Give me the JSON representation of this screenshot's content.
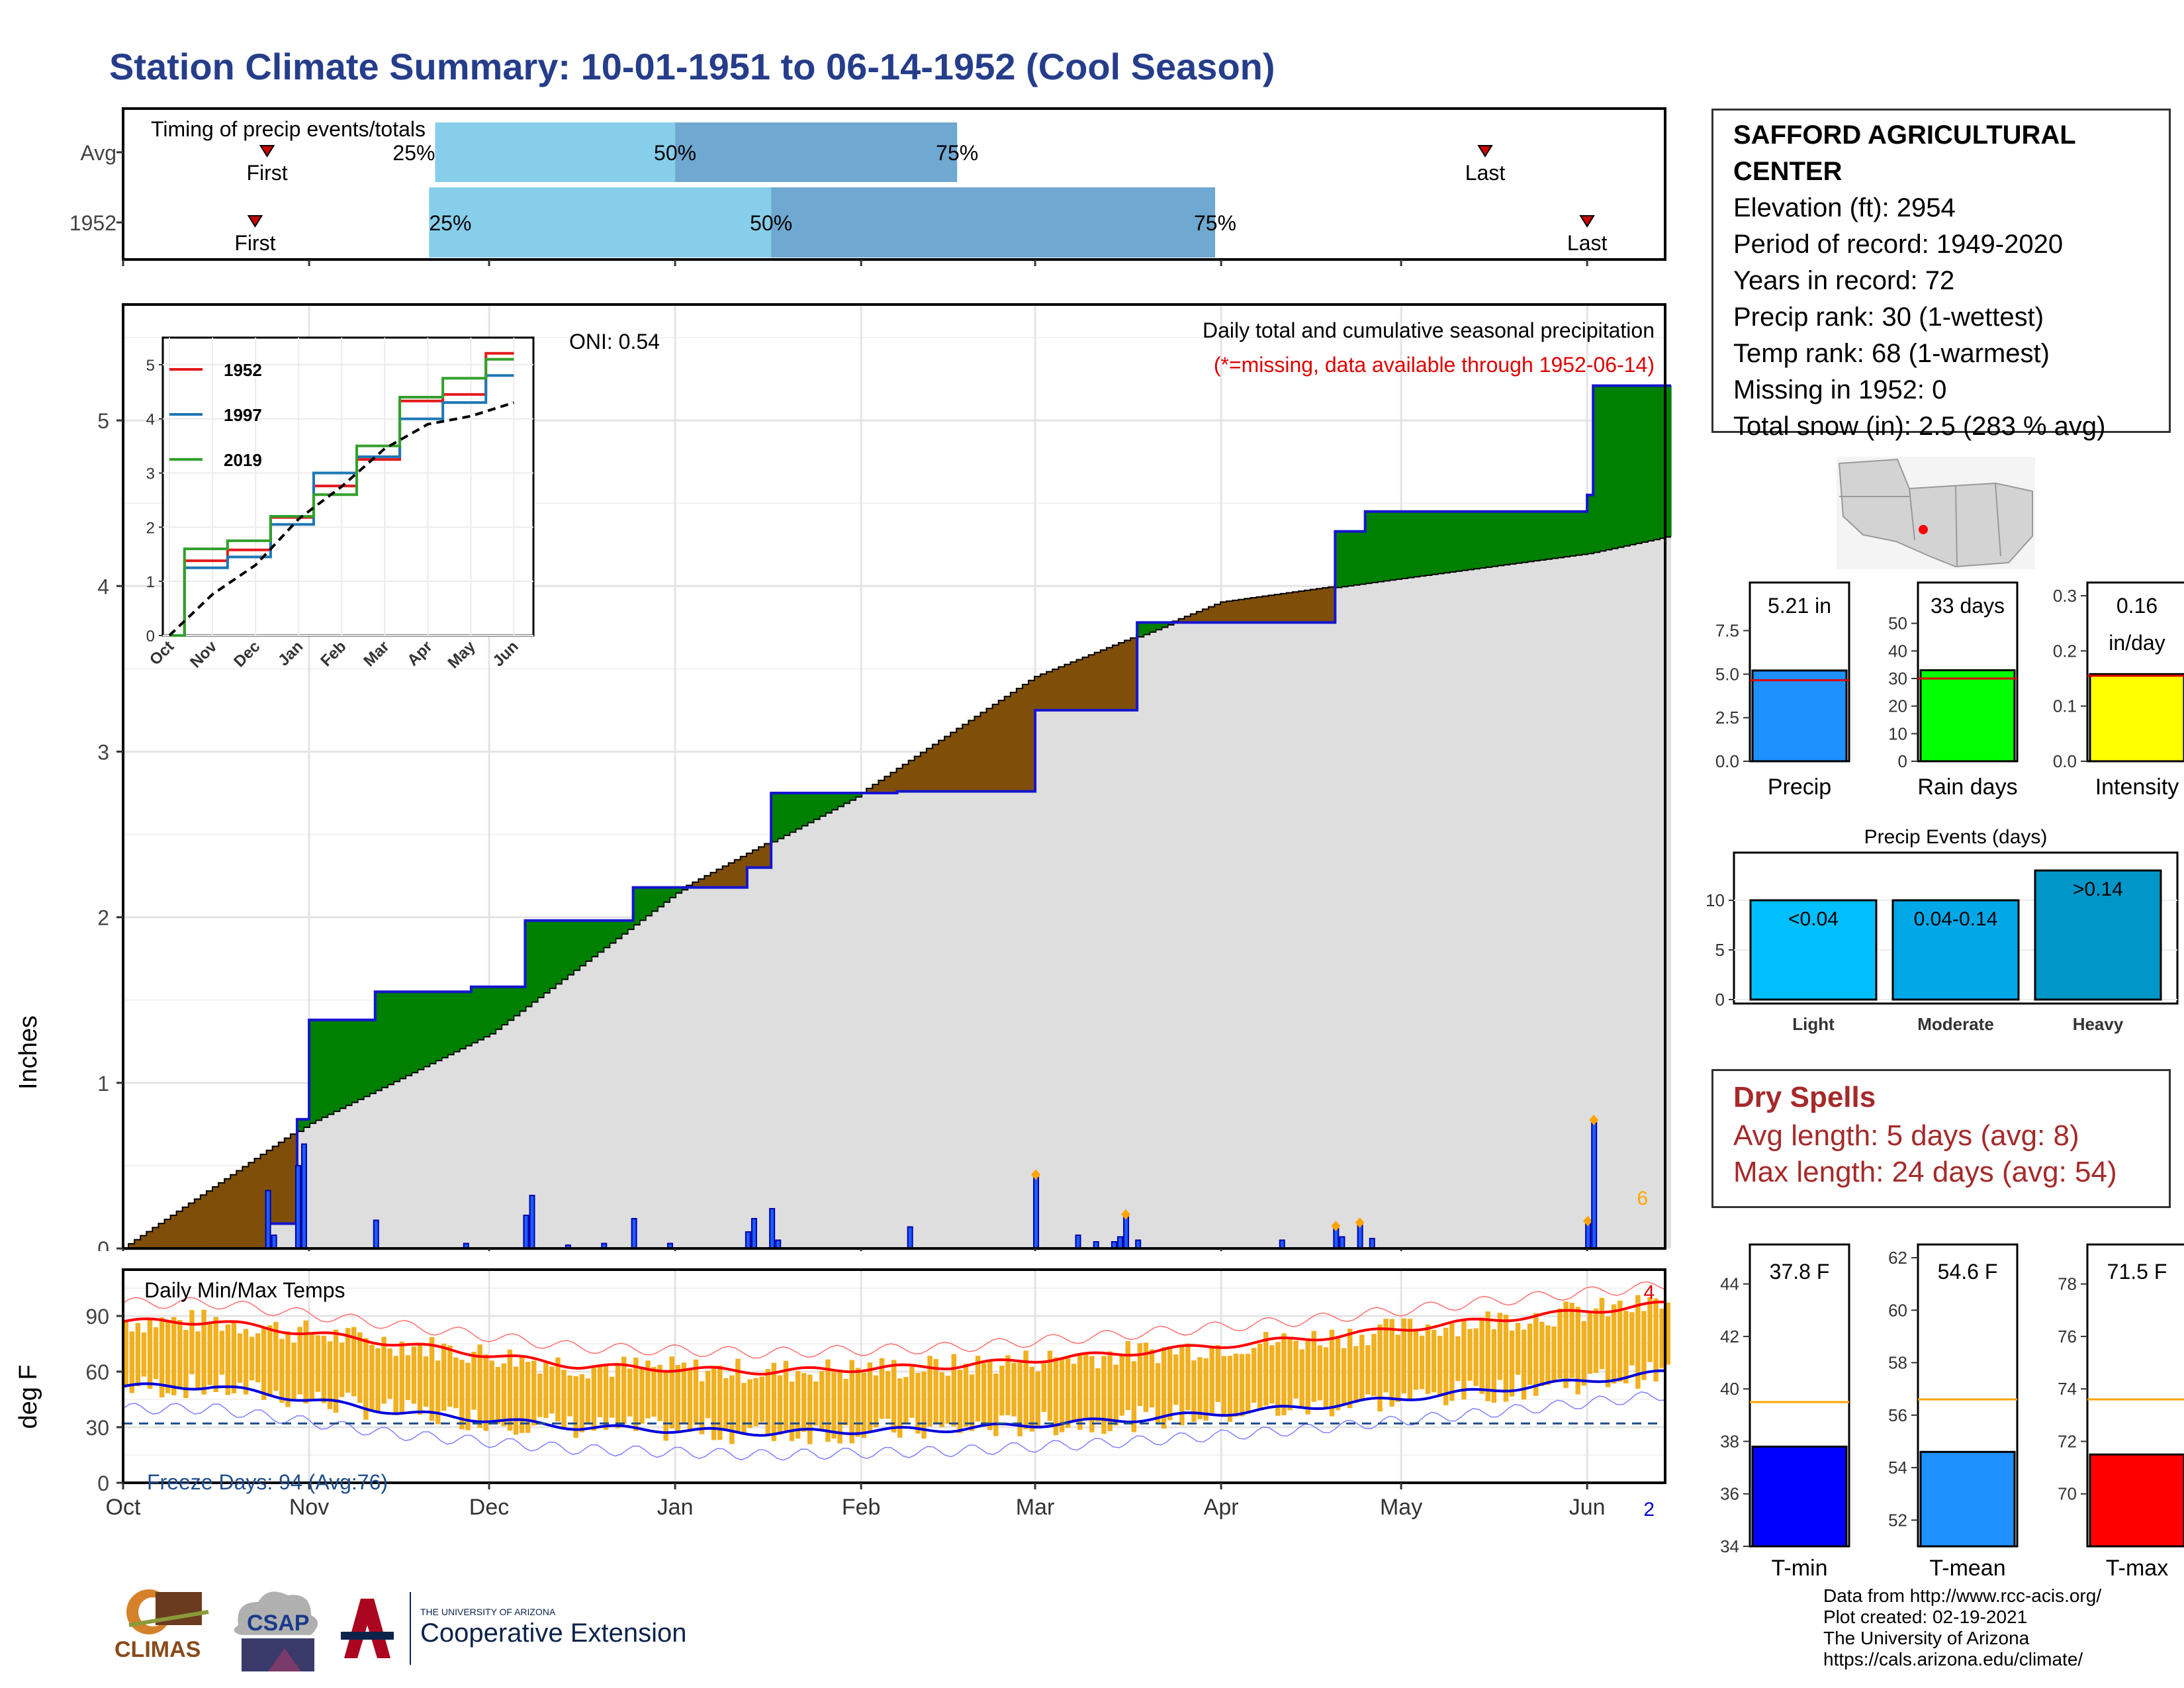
{
  "title": "Station Climate Summary: 10-01-1951 to 06-14-1952 (Cool Season)",
  "timing": {
    "title": "Timing of precip events/totals",
    "rows": [
      {
        "label": "Avg",
        "first": "Oct 25",
        "p25": "Nov 22",
        "p50": "Jan 1",
        "p75": "Feb 17",
        "last": "May 15"
      },
      {
        "label": "1952",
        "first": "Oct 23",
        "p25": "Nov 21",
        "p50": "Jan 17",
        "p75": "Mar 31",
        "last": "Jun 1"
      }
    ],
    "first_label": "First",
    "last_label": "Last",
    "p25_label": "25%",
    "p50_label": "50%",
    "p75_label": "75%"
  },
  "precip_panel": {
    "ylabel": "Inches",
    "oni": "ONI: 0.54",
    "title": "Daily total and cumulative seasonal precipitation",
    "missing_note": "(*=missing, data available through 1952-06-14)",
    "count_label": "6",
    "y_ticks": [
      "0",
      "1",
      "2",
      "3",
      "4",
      "5"
    ]
  },
  "inset": {
    "series_names": [
      "1952",
      "1997",
      "2019"
    ],
    "x_ticks": [
      "Oct",
      "Nov",
      "Dec",
      "Jan",
      "Feb",
      "Mar",
      "Apr",
      "May",
      "Jun"
    ],
    "y_ticks": [
      "0",
      "1",
      "2",
      "3",
      "4",
      "5"
    ]
  },
  "temp_panel": {
    "ylabel": "deg F",
    "title": "Daily Min/Max Temps",
    "freeze_label": "Freeze Days: 94 (Avg:76)",
    "max_count": "4",
    "min_count": "2",
    "y_ticks": [
      "0",
      "30",
      "60",
      "90"
    ],
    "x_ticks": [
      "Oct",
      "Nov",
      "Dec",
      "Jan",
      "Feb",
      "Mar",
      "Apr",
      "May",
      "Jun"
    ]
  },
  "station": {
    "name_line1": "SAFFORD AGRICULTURAL",
    "name_line2": "CENTER",
    "lines": [
      "Elevation (ft): 2954",
      "Period of record: 1949-2020",
      "Years in record: 72",
      "Precip rank: 30 (1-wettest)",
      "Temp rank: 68 (1-warmest)",
      "Missing in 1952: 0",
      "Total snow (in): 2.5 (283 % avg)"
    ]
  },
  "mini_bars": [
    {
      "label": "Precip",
      "value_label": "5.21 in",
      "value": 5.21,
      "avg": 4.65,
      "ymax": 9.5,
      "ticks": [
        0,
        2.5,
        5,
        7.5
      ],
      "tick_labels": [
        "0.0",
        "2.5",
        "5.0",
        "7.5"
      ],
      "color": "#1e90ff"
    },
    {
      "label": "Rain days",
      "value_label": "33 days",
      "value": 33,
      "avg": 30,
      "ymax": 60,
      "ticks": [
        0,
        10,
        20,
        30,
        40,
        50
      ],
      "tick_labels": [
        "0",
        "10",
        "20",
        "30",
        "40",
        "50"
      ],
      "color": "#00ff00"
    },
    {
      "label": "Intensity",
      "value_label": "0.16",
      "value_label2": "in/day",
      "value": 0.158,
      "avg": 0.155,
      "ymax": 0.3,
      "ticks": [
        0,
        0.1,
        0.2,
        0.3
      ],
      "tick_labels": [
        "0.0",
        "0.1",
        "0.2",
        "0.3"
      ],
      "color": "#ffff00"
    }
  ],
  "events": {
    "title": "Precip Events (days)",
    "categories": [
      "Light",
      "Moderate",
      "Heavy"
    ],
    "labels": [
      "<0.04",
      "0.04-0.14",
      ">0.14"
    ],
    "values": [
      10,
      10,
      13
    ],
    "colors": [
      "#00bfff",
      "#00a8e8",
      "#0096c7"
    ],
    "ticks": [
      "0",
      "5",
      "10"
    ]
  },
  "dry_spells": {
    "title": "Dry Spells",
    "avg": "Avg length: 5 days (avg: 8)",
    "max": "Max length: 24 days (avg: 54)"
  },
  "temp_bars": [
    {
      "label": "T-min",
      "value_label": "37.8 F",
      "value": 37.8,
      "avg": 39.5,
      "ymin": 34,
      "ymax": 45,
      "ticks": [
        34,
        36,
        38,
        40,
        42,
        44
      ],
      "color": "#0000ff"
    },
    {
      "label": "T-mean",
      "value_label": "54.6 F",
      "value": 54.6,
      "avg": 56.6,
      "ymin": 51,
      "ymax": 62,
      "ticks": [
        52,
        54,
        56,
        58,
        60,
        62
      ],
      "color": "#1e90ff"
    },
    {
      "label": "T-max",
      "value_label": "71.5 F",
      "value": 71.5,
      "avg": 73.6,
      "ymin": 68,
      "ymax": 79,
      "ticks": [
        70,
        72,
        74,
        76,
        78
      ],
      "color": "#ff0000"
    }
  ],
  "credits": [
    "Data from http://www.rcc-acis.org/",
    "Plot created: 02-19-2021",
    "The University of Arizona",
    "https://cals.arizona.edu/climate/"
  ],
  "logos": {
    "climas": "CLIMAS",
    "csap": "CSAP",
    "ua_small": "THE UNIVERSITY OF ARIZONA",
    "ua_big": "Cooperative Extension"
  },
  "chart_data": [
    {
      "type": "bar",
      "title": "Timing of precip events/totals",
      "categories": [
        "Avg",
        "1952"
      ],
      "series": [
        {
          "name": "25%",
          "values": [
            "Nov 22",
            "Nov 21"
          ]
        },
        {
          "name": "50%",
          "values": [
            "Jan 1",
            "Jan 17"
          ]
        },
        {
          "name": "75%",
          "values": [
            "Feb 17",
            "Mar 31"
          ]
        }
      ]
    },
    {
      "type": "area",
      "title": "Daily total and cumulative seasonal precipitation",
      "ylabel": "Inches",
      "ylim": [
        0,
        5.7
      ],
      "x_range": [
        "1951-10-01",
        "1952-06-14"
      ],
      "cumulative_1952": [
        [
          "1951-10-01",
          0
        ],
        [
          "1951-10-25",
          0.15
        ],
        [
          "1951-10-30",
          0.78
        ],
        [
          "1951-11-01",
          1.38
        ],
        [
          "1951-11-12",
          1.55
        ],
        [
          "1951-11-28",
          1.58
        ],
        [
          "1951-12-07",
          1.98
        ],
        [
          "1951-12-25",
          2.18
        ],
        [
          "1952-01-13",
          2.3
        ],
        [
          "1952-01-17",
          2.75
        ],
        [
          "1952-02-07",
          2.76
        ],
        [
          "1952-03-01",
          3.25
        ],
        [
          "1952-03-18",
          3.78
        ],
        [
          "1952-04-20",
          4.33
        ],
        [
          "1952-04-25",
          4.45
        ],
        [
          "1952-06-01",
          4.55
        ],
        [
          "1952-06-02",
          5.21
        ],
        [
          "1952-06-14",
          5.21
        ]
      ],
      "average_cumulative": [
        [
          "1951-10-01",
          0
        ],
        [
          "1951-11-01",
          0.76
        ],
        [
          "1951-12-01",
          1.3
        ],
        [
          "1952-01-01",
          2.15
        ],
        [
          "1952-02-01",
          2.75
        ],
        [
          "1952-03-01",
          3.45
        ],
        [
          "1952-04-01",
          3.9
        ],
        [
          "1952-05-01",
          4.05
        ],
        [
          "1952-06-01",
          4.2
        ],
        [
          "1952-06-14",
          4.3
        ]
      ],
      "daily_bars": [
        [
          "1951-10-25",
          0.35
        ],
        [
          "1951-10-26",
          0.08
        ],
        [
          "1951-10-30",
          0.5
        ],
        [
          "1951-10-31",
          0.63
        ],
        [
          "1951-11-12",
          0.17
        ],
        [
          "1951-11-27",
          0.03
        ],
        [
          "1951-12-07",
          0.2
        ],
        [
          "1951-12-08",
          0.32
        ],
        [
          "1951-12-14",
          0.02
        ],
        [
          "1951-12-20",
          0.03
        ],
        [
          "1951-12-25",
          0.18
        ],
        [
          "1951-12-31",
          0.03
        ],
        [
          "1952-01-13",
          0.1
        ],
        [
          "1952-01-14",
          0.18
        ],
        [
          "1952-01-17",
          0.24
        ],
        [
          "1952-01-18",
          0.05
        ],
        [
          "1952-02-09",
          0.13
        ],
        [
          "1952-03-01",
          0.43
        ],
        [
          "1952-03-08",
          0.08
        ],
        [
          "1952-03-11",
          0.04
        ],
        [
          "1952-03-14",
          0.04
        ],
        [
          "1952-03-15",
          0.07
        ],
        [
          "1952-03-16",
          0.19
        ],
        [
          "1952-03-18",
          0.05
        ],
        [
          "1952-04-11",
          0.05
        ],
        [
          "1952-04-20",
          0.12
        ],
        [
          "1952-04-21",
          0.07
        ],
        [
          "1952-04-24",
          0.14
        ],
        [
          "1952-04-26",
          0.06
        ],
        [
          "1952-06-01",
          0.15
        ],
        [
          "1952-06-02",
          0.76
        ]
      ]
    },
    {
      "type": "line",
      "title": "",
      "x": [
        "Oct",
        "Nov",
        "Dec",
        "Jan",
        "Feb",
        "Mar",
        "Apr",
        "May",
        "Jun"
      ],
      "ylim": [
        0,
        5.5
      ],
      "series": [
        {
          "name": "1952",
          "values": [
            0,
            1.38,
            1.58,
            2.18,
            2.76,
            3.25,
            4.33,
            4.45,
            5.21
          ]
        },
        {
          "name": "1997",
          "values": [
            0,
            1.25,
            1.45,
            2.05,
            3.0,
            3.3,
            4.0,
            4.3,
            4.8
          ]
        },
        {
          "name": "2019",
          "values": [
            0,
            1.6,
            1.75,
            2.2,
            2.6,
            3.5,
            4.4,
            4.75,
            5.1
          ]
        }
      ]
    },
    {
      "type": "bar",
      "title": "Daily Min/Max Temps",
      "ylabel": "deg F",
      "ylim": [
        0,
        115
      ],
      "x_range": [
        "1951-10-01",
        "1952-06-14"
      ],
      "avg_max_by_month": [
        87,
        75,
        63,
        60,
        63,
        70,
        78,
        88,
        97
      ],
      "avg_min_by_month": [
        52,
        38,
        30,
        27,
        29,
        34,
        41,
        50,
        60
      ],
      "freeze_line": 32
    }
  ]
}
